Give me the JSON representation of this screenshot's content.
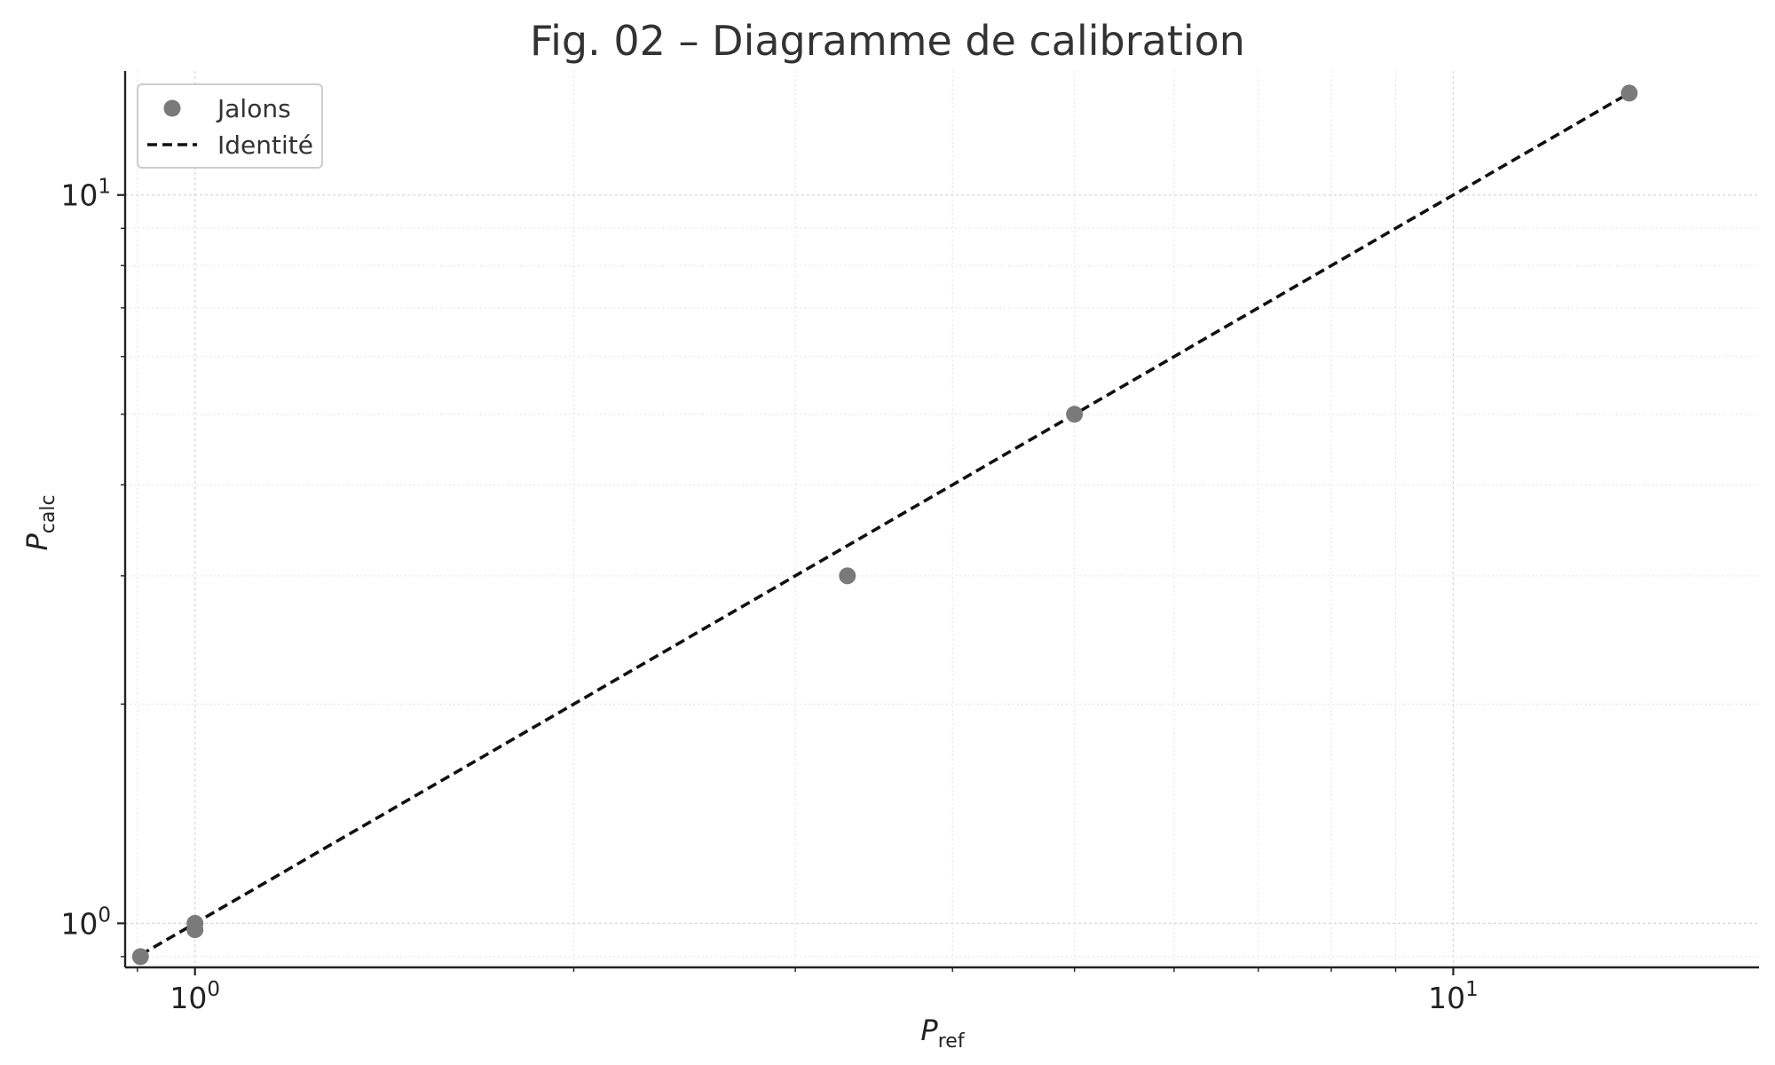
{
  "chart_data": {
    "type": "scatter",
    "title": "Fig. 02 – Diagramme de calibration",
    "xlabel": {
      "main": "P",
      "sub": "ref"
    },
    "ylabel": {
      "main": "P",
      "sub": "calc"
    },
    "xscale": "log",
    "yscale": "log",
    "xlim": [
      0.88,
      17.5
    ],
    "ylim": [
      0.87,
      14.8
    ],
    "xticks": [
      {
        "value": 1,
        "base": "10",
        "exp": "0"
      },
      {
        "value": 10,
        "base": "10",
        "exp": "1"
      }
    ],
    "yticks": [
      {
        "value": 1,
        "base": "10",
        "exp": "0"
      },
      {
        "value": 10,
        "base": "10",
        "exp": "1"
      }
    ],
    "grid": true,
    "legend_position": "top-left",
    "series": [
      {
        "name": "Jalons",
        "kind": "scatter",
        "color": "#7a7a7a",
        "points": [
          {
            "x": 0.905,
            "y": 0.9
          },
          {
            "x": 1.0,
            "y": 1.0
          },
          {
            "x": 1.0,
            "y": 0.98
          },
          {
            "x": 3.3,
            "y": 3.0
          },
          {
            "x": 5.0,
            "y": 5.0
          },
          {
            "x": 13.8,
            "y": 13.8
          }
        ]
      },
      {
        "name": "Identité",
        "kind": "line",
        "style": "dashed",
        "color": "#111111",
        "points": [
          {
            "x": 0.905,
            "y": 0.905
          },
          {
            "x": 13.8,
            "y": 13.8
          }
        ]
      }
    ]
  }
}
